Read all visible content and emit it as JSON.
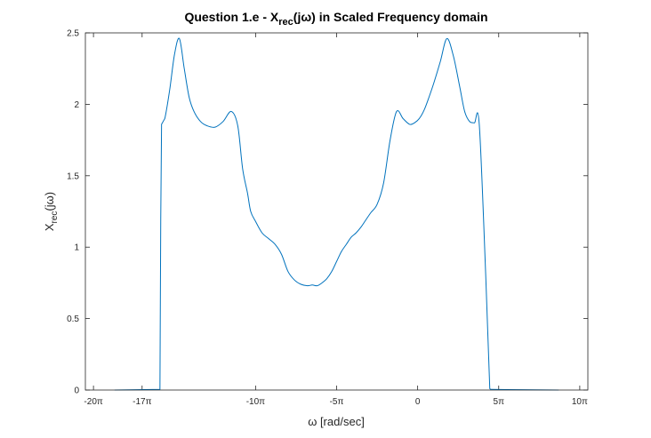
{
  "chart_data": {
    "type": "line",
    "title_parts": {
      "prefix": "Question 1.e - X",
      "subscript": "rec",
      "suffix": "(jω) in Scaled Frequency domain"
    },
    "xlabel": "ω [rad/sec]",
    "ylabel_parts": {
      "base": "X",
      "subscript": "rec",
      "suffix": "(jω)"
    },
    "x_unit": "π",
    "xlim": [
      -20.5,
      10.5
    ],
    "ylim": [
      0,
      2.5
    ],
    "x_ticks": [
      {
        "value": -20,
        "label": "-20π"
      },
      {
        "value": -17,
        "label": "-17π"
      },
      {
        "value": -10,
        "label": "-10π"
      },
      {
        "value": -5,
        "label": "-5π"
      },
      {
        "value": 0,
        "label": "0"
      },
      {
        "value": 5,
        "label": "5π"
      },
      {
        "value": 10,
        "label": "10π"
      }
    ],
    "y_ticks": [
      {
        "value": 0,
        "label": "0"
      },
      {
        "value": 0.5,
        "label": "0.5"
      },
      {
        "value": 1,
        "label": "1"
      },
      {
        "value": 1.5,
        "label": "1.5"
      },
      {
        "value": 2,
        "label": "2"
      },
      {
        "value": 2.5,
        "label": "2.5"
      }
    ],
    "grid": false,
    "series": [
      {
        "color": "#0072BD",
        "x": [
          -18.7,
          -15.9,
          -15.85,
          -15.8,
          -15.6,
          -15.3,
          -15.0,
          -14.7,
          -14.4,
          -14.1,
          -13.8,
          -13.4,
          -13.0,
          -12.5,
          -12.0,
          -11.5,
          -11.1,
          -10.8,
          -10.5,
          -10.3,
          -10.0,
          -9.6,
          -9.2,
          -8.8,
          -8.4,
          -8.0,
          -7.6,
          -7.2,
          -6.8,
          -6.5,
          -6.2,
          -5.9,
          -5.6,
          -5.3,
          -5.0,
          -4.7,
          -4.4,
          -4.1,
          -3.8,
          -3.5,
          -3.2,
          -2.9,
          -2.5,
          -2.1,
          -1.7,
          -1.3,
          -0.9,
          -0.5,
          -0.2,
          0.1,
          0.4,
          0.7,
          1.0,
          1.4,
          1.8,
          2.2,
          2.6,
          2.9,
          3.2,
          3.5,
          3.8,
          4.2,
          4.45,
          4.5,
          4.55,
          5.5,
          8.7
        ],
        "y": [
          0,
          0.005,
          1.2,
          1.86,
          1.9,
          2.1,
          2.35,
          2.46,
          2.25,
          2.05,
          1.95,
          1.88,
          1.85,
          1.84,
          1.88,
          1.95,
          1.85,
          1.55,
          1.38,
          1.25,
          1.18,
          1.1,
          1.06,
          1.02,
          0.95,
          0.83,
          0.77,
          0.74,
          0.73,
          0.735,
          0.73,
          0.75,
          0.78,
          0.83,
          0.9,
          0.97,
          1.02,
          1.07,
          1.1,
          1.14,
          1.19,
          1.24,
          1.3,
          1.45,
          1.75,
          1.95,
          1.9,
          1.86,
          1.87,
          1.9,
          1.96,
          2.05,
          2.15,
          2.3,
          2.46,
          2.34,
          2.12,
          1.95,
          1.88,
          1.87,
          1.86,
          0.8,
          0.01,
          0.005,
          0.005,
          0.003,
          0
        ]
      }
    ]
  }
}
